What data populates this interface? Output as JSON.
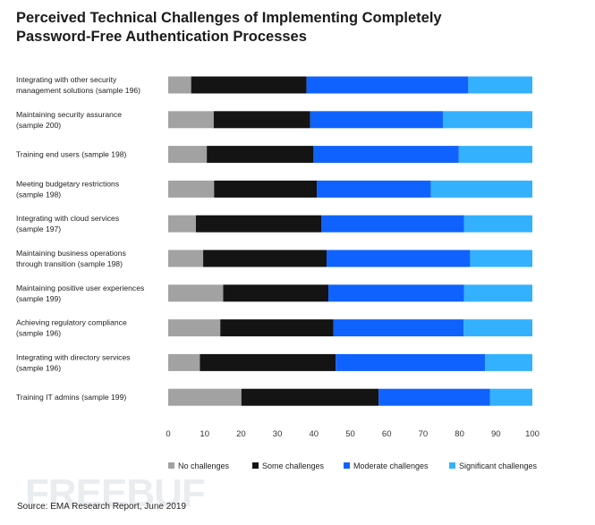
{
  "chart_data": {
    "type": "bar",
    "stacked": true,
    "orientation": "horizontal",
    "title_lines": [
      "Perceived Technical Challenges of Implementing Completely",
      "Password-Free Authentication Processes"
    ],
    "categories": [
      [
        "Integrating with other security",
        "management solutions (sample 196)"
      ],
      [
        "Maintaining security assurance",
        "(sample 200)"
      ],
      [
        "Training end users (sample 198)"
      ],
      [
        "Meeting budgetary restrictions",
        "(sample 198)"
      ],
      [
        "Integrating with cloud services",
        "(sample 197)"
      ],
      [
        "Maintaining business operations",
        "through transition (sample 198)"
      ],
      [
        "Maintaining positive user experiences",
        "(sample 199)"
      ],
      [
        "Achieving regulatory compliance",
        "(sample 196)"
      ],
      [
        "Integrating with directory services",
        "(sample 196)"
      ],
      [
        "Training IT admins (sample 199)"
      ]
    ],
    "series": [
      {
        "name": "No challenges",
        "color": "#a2a2a2",
        "values": [
          6.3,
          12.5,
          10.6,
          12.6,
          7.6,
          9.6,
          15.1,
          14.3,
          8.7,
          20.1
        ]
      },
      {
        "name": "Some challenges",
        "color": "#141414",
        "values": [
          31.7,
          26.5,
          29.3,
          28.2,
          34.5,
          33.9,
          28.9,
          31.1,
          37.3,
          37.7
        ]
      },
      {
        "name": "Moderate challenges",
        "color": "#0f62fe",
        "values": [
          44.4,
          36.5,
          39.9,
          31.3,
          39.1,
          39.4,
          37.2,
          35.7,
          41.0,
          30.6
        ]
      },
      {
        "name": "Significant challenges",
        "color": "#33b1ff",
        "values": [
          17.6,
          24.5,
          20.2,
          27.9,
          18.8,
          17.1,
          18.8,
          18.9,
          13.0,
          11.6
        ]
      }
    ],
    "xlim": [
      0,
      100
    ],
    "xticks": [
      "0",
      "10",
      "20",
      "30",
      "40",
      "50",
      "60",
      "70",
      "80",
      "90",
      "100"
    ],
    "legend_position": "bottom",
    "grid": false
  },
  "source": "Source: EMA Research Report, June 2019",
  "watermark": "FREEBUF"
}
